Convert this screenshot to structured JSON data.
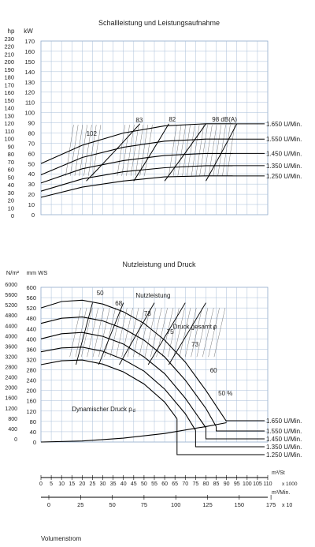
{
  "chart_data": [
    {
      "type": "line",
      "title": "Schallleistung und Leistungsaufnahme",
      "left_axis_unit": "hp",
      "right_axis_unit": "kW",
      "left_ticks": [
        "230",
        "220",
        "210",
        "200",
        "190",
        "180",
        "170",
        "160",
        "150",
        "140",
        "130",
        "120",
        "110",
        "100",
        "90",
        "80",
        "70",
        "60",
        "50",
        "40",
        "30",
        "20",
        "10",
        "0"
      ],
      "right_ticks": [
        "170",
        "160",
        "150",
        "140",
        "130",
        "120",
        "110",
        "100",
        "90",
        "80",
        "70",
        "60",
        "50",
        "40",
        "30",
        "20",
        "10",
        "0"
      ],
      "ylim_kw": [
        0,
        170
      ],
      "xlim_m3h": [
        0,
        110000
      ],
      "grid": true,
      "speed_labels": [
        "1.650 U/Min.",
        "1.550 U/Min.",
        "1.450 U/Min.",
        "1.350 U/Min.",
        "1.250 U/Min."
      ],
      "series": [
        {
          "name": "1.650 U/Min.",
          "x": [
            0,
            20000,
            40000,
            60000,
            80000,
            93000
          ],
          "y": [
            50,
            68,
            80,
            87,
            89,
            89
          ]
        },
        {
          "name": "1.550 U/Min.",
          "x": [
            0,
            20000,
            40000,
            60000,
            80000,
            93000
          ],
          "y": [
            39,
            56,
            66,
            72,
            74,
            74
          ]
        },
        {
          "name": "1.450 U/Min.",
          "x": [
            0,
            20000,
            40000,
            60000,
            80000,
            93000
          ],
          "y": [
            31,
            45,
            53,
            58,
            60,
            60
          ]
        },
        {
          "name": "1.350 U/Min.",
          "x": [
            0,
            20000,
            40000,
            60000,
            80000,
            93000
          ],
          "y": [
            23,
            35,
            42,
            46,
            48,
            48
          ]
        },
        {
          "name": "1.250 U/Min.",
          "x": [
            0,
            20000,
            40000,
            60000,
            80000,
            93000
          ],
          "y": [
            17,
            27,
            33,
            37,
            38,
            38
          ]
        }
      ],
      "db_labels": [
        "102",
        "83",
        "82",
        "98 dB(A)"
      ]
    },
    {
      "type": "line",
      "title": "Nutzleistung und Druck",
      "left_axis_unit": "N/m²",
      "right_axis_unit": "mm WS",
      "left_ticks": [
        "6000",
        "5600",
        "5200",
        "4800",
        "4400",
        "4000",
        "3600",
        "3200",
        "2800",
        "2400",
        "2000",
        "1600",
        "1200",
        "800",
        "400",
        "0"
      ],
      "right_ticks": [
        "600",
        "560",
        "520",
        "480",
        "440",
        "400",
        "360",
        "320",
        "280",
        "240",
        "200",
        "160",
        "120",
        "80",
        "40",
        "0"
      ],
      "ylim_mmws": [
        0,
        600
      ],
      "xlim_m3h": [
        0,
        110000
      ],
      "grid": true,
      "speed_labels": [
        "1.650 U/Min.",
        "1.550 U/Min.",
        "1.450 U/Min.",
        "1.350 U/Min.",
        "1.250 U/Min."
      ],
      "annotations": [
        "Nutzleistung",
        "Druck gesamt p",
        "t",
        "Dynamischer Druck p",
        "d",
        "50",
        "68",
        "73",
        "75",
        "73",
        "60",
        "50 %"
      ],
      "series": [
        {
          "name": "1.650 U/Min.",
          "x": [
            0,
            10000,
            20000,
            30000,
            40000,
            50000,
            60000,
            70000,
            80000,
            90000
          ],
          "y": [
            520,
            545,
            550,
            535,
            505,
            460,
            395,
            310,
            200,
            80
          ]
        },
        {
          "name": "1.550 U/Min.",
          "x": [
            0,
            10000,
            20000,
            30000,
            40000,
            50000,
            60000,
            70000,
            80000,
            85000
          ],
          "y": [
            460,
            480,
            485,
            470,
            440,
            395,
            330,
            240,
            130,
            60
          ]
        },
        {
          "name": "1.450 U/Min.",
          "x": [
            0,
            10000,
            20000,
            30000,
            40000,
            50000,
            60000,
            70000,
            80000
          ],
          "y": [
            400,
            420,
            425,
            410,
            380,
            330,
            265,
            170,
            55
          ]
        },
        {
          "name": "1.350 U/Min.",
          "x": [
            0,
            10000,
            20000,
            30000,
            40000,
            50000,
            60000,
            70000,
            75000
          ],
          "y": [
            350,
            365,
            368,
            352,
            320,
            275,
            205,
            110,
            45
          ]
        },
        {
          "name": "1.250 U/Min.",
          "x": [
            0,
            10000,
            20000,
            30000,
            40000,
            50000,
            60000,
            66000
          ],
          "y": [
            300,
            315,
            318,
            302,
            272,
            225,
            155,
            90
          ]
        },
        {
          "name": "Dynamischer Druck p",
          "x": [
            0,
            20000,
            40000,
            60000,
            80000,
            90000
          ],
          "y": [
            0,
            4,
            15,
            33,
            60,
            75
          ]
        }
      ]
    }
  ],
  "x_axes": [
    {
      "unit": "m³/St",
      "suffix": "x 1000",
      "ticks": [
        "0",
        "5",
        "10",
        "15",
        "20",
        "25",
        "30",
        "35",
        "40",
        "45",
        "50",
        "55",
        "60",
        "65",
        "70",
        "75",
        "80",
        "85",
        "90",
        "95",
        "100",
        "105",
        "110"
      ]
    },
    {
      "unit": "m³/Min.",
      "suffix": "x 10",
      "ticks": [
        "0",
        "25",
        "50",
        "75",
        "100",
        "125",
        "150",
        "175"
      ]
    }
  ],
  "x_axis_title": "Volumenstrom"
}
